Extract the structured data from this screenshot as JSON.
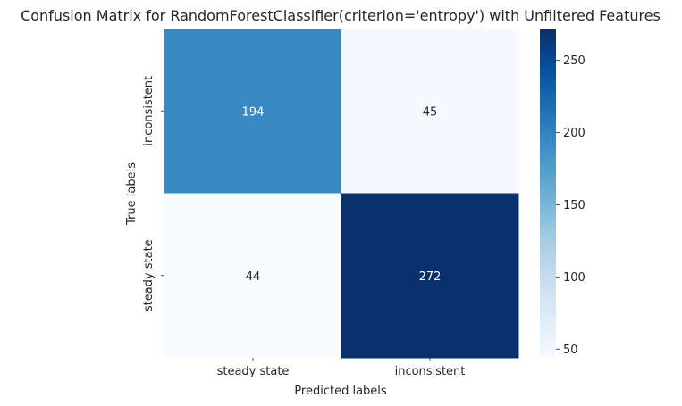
{
  "chart_data": {
    "type": "heatmap",
    "title": "Confusion Matrix for RandomForestClassifier(criterion='entropy') with Unfiltered Features",
    "xlabel": "Predicted labels",
    "ylabel": "True labels",
    "x_categories": [
      "steady state",
      "inconsistent"
    ],
    "y_categories": [
      "inconsistent",
      "steady state"
    ],
    "values": [
      [
        194,
        45
      ],
      [
        44,
        272
      ]
    ],
    "colorbar": {
      "colormap": "Blues",
      "range": [
        44,
        272
      ],
      "ticks": [
        50,
        100,
        150,
        200,
        250
      ]
    }
  }
}
